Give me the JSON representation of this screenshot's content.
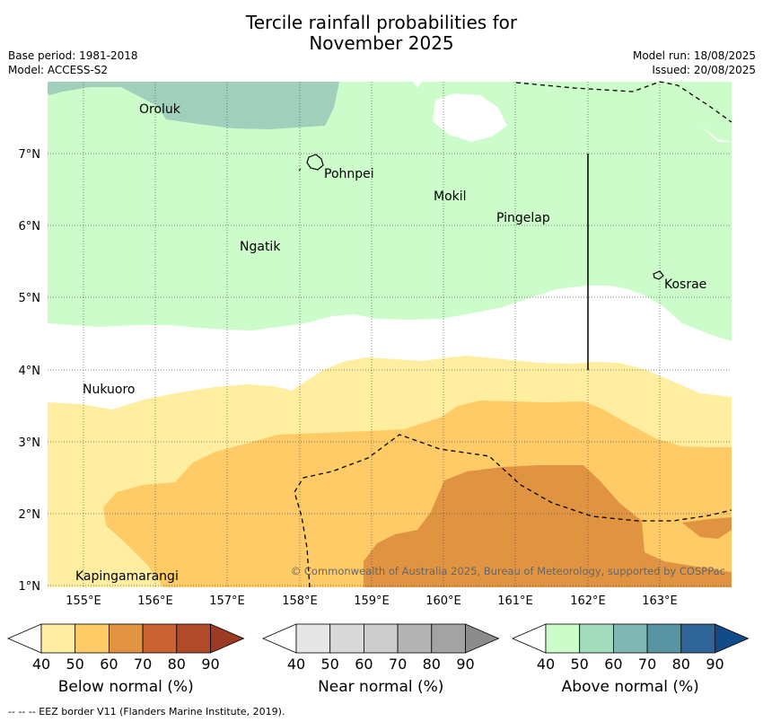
{
  "title": {
    "line1": "Tercile rainfall probabilities for",
    "line2": "November 2025"
  },
  "meta_left": {
    "base_period": "Base period: 1981-2018",
    "model": "Model: ACCESS-S2"
  },
  "meta_right": {
    "model_run": "Model run: 18/08/2025",
    "issued": "Issued: 20/08/2025"
  },
  "map": {
    "lon_labels": [
      "155°E",
      "156°E",
      "157°E",
      "158°E",
      "159°E",
      "160°E",
      "161°E",
      "162°E",
      "163°E"
    ],
    "lat_labels": [
      "7°N",
      "6°N",
      "5°N",
      "4°N",
      "3°N",
      "2°N",
      "1°N"
    ],
    "places": [
      {
        "name": "Oroluk"
      },
      {
        "name": "Pohnpei"
      },
      {
        "name": "Mokil"
      },
      {
        "name": "Pingelap"
      },
      {
        "name": "Ngatik"
      },
      {
        "name": "Kosrae"
      },
      {
        "name": "Nukuoro"
      },
      {
        "name": "Kapingamarangi"
      }
    ],
    "copyright": "© Commonwealth of Australia 2025, Bureau of Meteorology, supported by COSPPac"
  },
  "colorbars": [
    {
      "label": "Below normal (%)",
      "ticks": [
        "40",
        "50",
        "60",
        "70",
        "80",
        "90"
      ],
      "colors": [
        "#ffeda0",
        "#fecb66",
        "#e09442",
        "#cb6232",
        "#b04a2a",
        "#9c3a24"
      ]
    },
    {
      "label": "Near normal (%)",
      "ticks": [
        "40",
        "50",
        "60",
        "70",
        "80",
        "90"
      ],
      "colors": [
        "#e6e6e6",
        "#d9d9d9",
        "#cccccc",
        "#b3b3b3",
        "#a3a3a3",
        "#8c8c8c"
      ]
    },
    {
      "label": "Above normal (%)",
      "ticks": [
        "40",
        "50",
        "60",
        "70",
        "80",
        "90"
      ],
      "colors": [
        "#ccfcca",
        "#a3dcbc",
        "#80b7b2",
        "#5894a2",
        "#2f6496",
        "#114c88"
      ]
    }
  ],
  "footer": "--  --  -- EEZ border V11 (Flanders Marine Institute, 2019)."
}
